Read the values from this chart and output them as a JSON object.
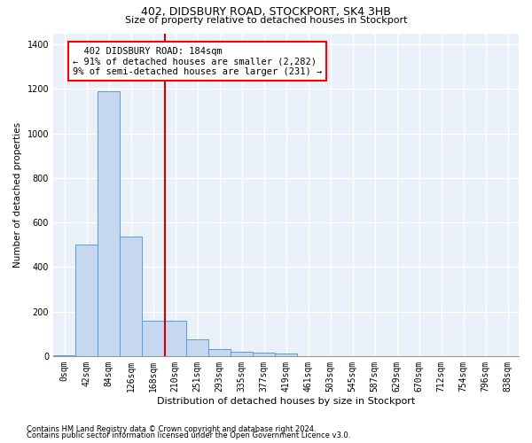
{
  "title": "402, DIDSBURY ROAD, STOCKPORT, SK4 3HB",
  "subtitle": "Size of property relative to detached houses in Stockport",
  "xlabel": "Distribution of detached houses by size in Stockport",
  "ylabel": "Number of detached properties",
  "footnote1": "Contains HM Land Registry data © Crown copyright and database right 2024.",
  "footnote2": "Contains public sector information licensed under the Open Government Licence v3.0.",
  "bar_labels": [
    "0sqm",
    "42sqm",
    "84sqm",
    "126sqm",
    "168sqm",
    "210sqm",
    "251sqm",
    "293sqm",
    "335sqm",
    "377sqm",
    "419sqm",
    "461sqm",
    "503sqm",
    "545sqm",
    "587sqm",
    "629sqm",
    "670sqm",
    "712sqm",
    "754sqm",
    "796sqm",
    "838sqm"
  ],
  "bar_values": [
    5,
    500,
    1190,
    535,
    160,
    160,
    75,
    30,
    20,
    15,
    12,
    0,
    0,
    0,
    0,
    0,
    0,
    0,
    0,
    0,
    0
  ],
  "bar_color": "#c5d8f0",
  "bar_edge_color": "#5b9bd5",
  "vline_x": 4.55,
  "vline_color": "#cc0000",
  "annotation_box_text": "  402 DIDSBURY ROAD: 184sqm\n← 91% of detached houses are smaller (2,282)\n9% of semi-detached houses are larger (231) →",
  "ylim": [
    0,
    1450
  ],
  "yticks": [
    0,
    200,
    400,
    600,
    800,
    1000,
    1200,
    1400
  ],
  "title_fontsize": 9,
  "subtitle_fontsize": 8,
  "xlabel_fontsize": 8,
  "ylabel_fontsize": 7.5,
  "tick_fontsize": 7,
  "annotation_fontsize": 7.5,
  "bg_color": "#eaf0f8",
  "grid_color": "#ffffff"
}
